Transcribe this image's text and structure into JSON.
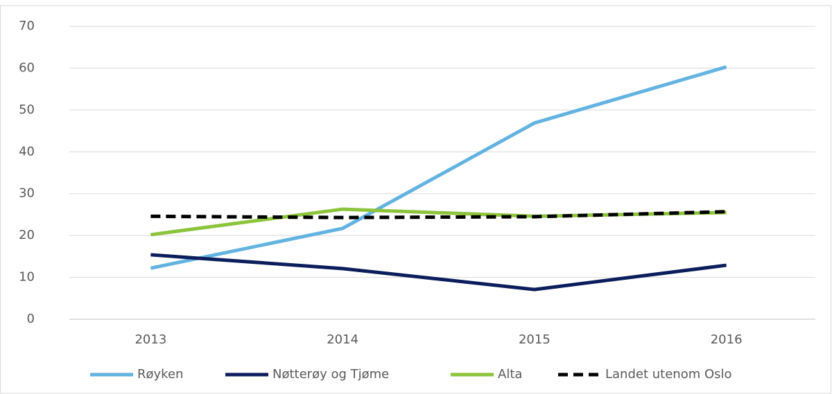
{
  "chart_data": {
    "type": "line",
    "categories": [
      "2013",
      "2014",
      "2015",
      "2016"
    ],
    "series": [
      {
        "name": "Røyken",
        "color": "#63b3e1",
        "dash": false,
        "values": [
          12.2,
          21.7,
          46.9,
          60.3
        ]
      },
      {
        "name": "Nøtterøy og Tjøme",
        "color": "#0b1e5b",
        "dash": false,
        "values": [
          15.4,
          12.1,
          7.1,
          12.9
        ]
      },
      {
        "name": "Alta",
        "color": "#8cc43c",
        "dash": false,
        "values": [
          20.2,
          26.3,
          24.6,
          25.5
        ]
      },
      {
        "name": "Landet utenom Oslo",
        "color": "#000000",
        "dash": true,
        "values": [
          24.6,
          24.3,
          24.5,
          25.7
        ]
      }
    ],
    "ylim": [
      0,
      70
    ],
    "yticks": [
      0,
      10,
      20,
      30,
      40,
      50,
      60,
      70
    ],
    "grid": true,
    "legend": "bottom"
  }
}
